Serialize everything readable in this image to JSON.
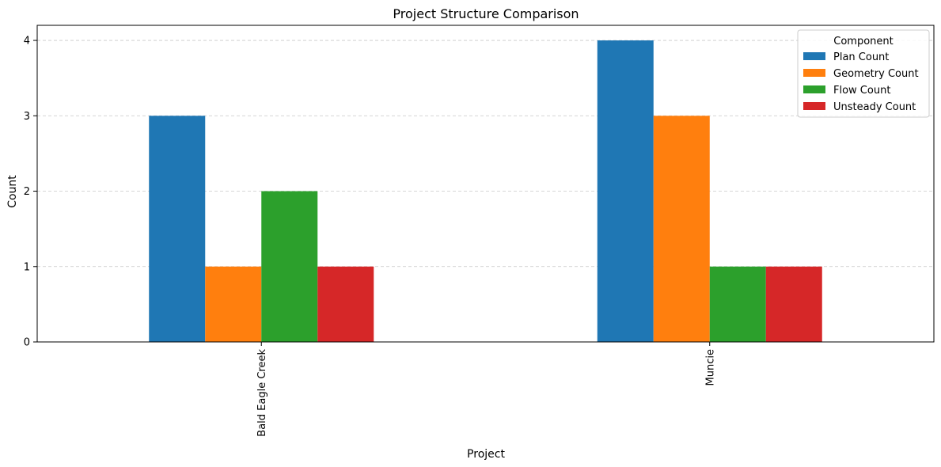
{
  "chart_data": {
    "type": "bar",
    "title": "Project Structure Comparison",
    "xlabel": "Project",
    "ylabel": "Count",
    "categories": [
      "Bald Eagle Creek",
      "Muncie"
    ],
    "series": [
      {
        "name": "Plan Count",
        "color": "#1f77b4",
        "values": [
          3,
          4
        ]
      },
      {
        "name": "Geometry Count",
        "color": "#ff7f0e",
        "values": [
          1,
          3
        ]
      },
      {
        "name": "Flow Count",
        "color": "#2ca02c",
        "values": [
          2,
          1
        ]
      },
      {
        "name": "Unsteady Count",
        "color": "#d62728",
        "values": [
          1,
          1
        ]
      }
    ],
    "ylim": [
      0,
      4.2
    ],
    "yticks": [
      "0",
      "1",
      "2",
      "3",
      "4"
    ],
    "grid": "y-dashed",
    "legend": {
      "title": "Component",
      "placement": "top-right"
    }
  }
}
